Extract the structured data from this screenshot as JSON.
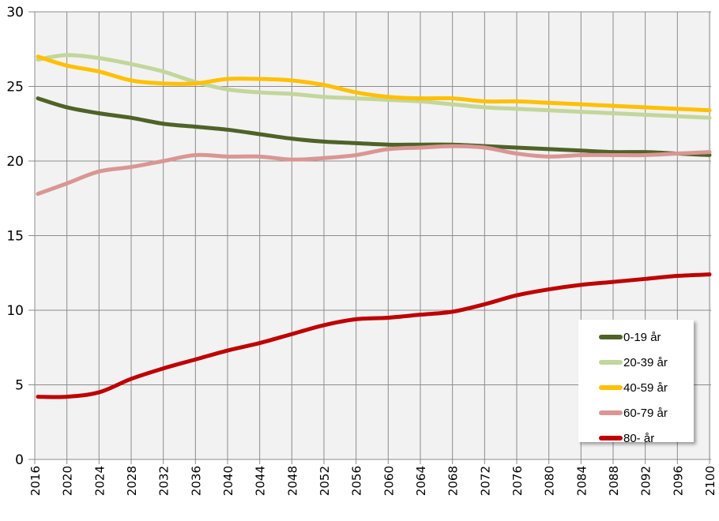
{
  "chart_data": {
    "type": "line",
    "x": [
      2016,
      2020,
      2024,
      2028,
      2032,
      2036,
      2040,
      2044,
      2048,
      2052,
      2056,
      2060,
      2064,
      2068,
      2072,
      2076,
      2080,
      2084,
      2088,
      2092,
      2096,
      2100
    ],
    "x_tick_labels": [
      "2016",
      "2020",
      "2024",
      "2028",
      "2032",
      "2036",
      "2040",
      "2044",
      "2048",
      "2052",
      "2056",
      "2060",
      "2064",
      "2068",
      "2072",
      "2076",
      "2080",
      "2084",
      "2088",
      "2092",
      "2096",
      "2100"
    ],
    "y_tick_labels": [
      "0",
      "5",
      "10",
      "15",
      "20",
      "25",
      "30"
    ],
    "ylim": [
      0,
      30
    ],
    "xlim": [
      2016,
      2100
    ],
    "grid": true,
    "legend_position": "bottom-right",
    "series": [
      {
        "name": "0-19 år",
        "color": "#4f6228",
        "values": [
          24.2,
          23.6,
          23.2,
          22.9,
          22.5,
          22.3,
          22.1,
          21.8,
          21.5,
          21.3,
          21.2,
          21.1,
          21.1,
          21.1,
          21.0,
          20.9,
          20.8,
          20.7,
          20.6,
          20.6,
          20.5,
          20.4
        ]
      },
      {
        "name": "20-39 år",
        "color": "#c3d69b",
        "values": [
          26.8,
          27.1,
          26.9,
          26.5,
          26.0,
          25.3,
          24.8,
          24.6,
          24.5,
          24.3,
          24.2,
          24.1,
          24.0,
          23.8,
          23.6,
          23.5,
          23.4,
          23.3,
          23.2,
          23.1,
          23.0,
          22.9
        ]
      },
      {
        "name": "40-59 år",
        "color": "#ffc000",
        "values": [
          27.0,
          26.4,
          26.0,
          25.4,
          25.2,
          25.2,
          25.5,
          25.5,
          25.4,
          25.1,
          24.6,
          24.3,
          24.2,
          24.2,
          24.0,
          24.0,
          23.9,
          23.8,
          23.7,
          23.6,
          23.5,
          23.4
        ]
      },
      {
        "name": "60-79 år",
        "color": "#d99694",
        "values": [
          17.8,
          18.5,
          19.3,
          19.6,
          20.0,
          20.4,
          20.3,
          20.3,
          20.1,
          20.2,
          20.4,
          20.8,
          20.9,
          21.0,
          20.9,
          20.5,
          20.3,
          20.4,
          20.4,
          20.4,
          20.5,
          20.6
        ]
      },
      {
        "name": "80- år",
        "color": "#c00000",
        "values": [
          4.2,
          4.2,
          4.5,
          5.4,
          6.1,
          6.7,
          7.3,
          7.8,
          8.4,
          9.0,
          9.4,
          9.5,
          9.7,
          9.9,
          10.4,
          11.0,
          11.4,
          11.7,
          11.9,
          12.1,
          12.3,
          12.4
        ]
      }
    ]
  }
}
